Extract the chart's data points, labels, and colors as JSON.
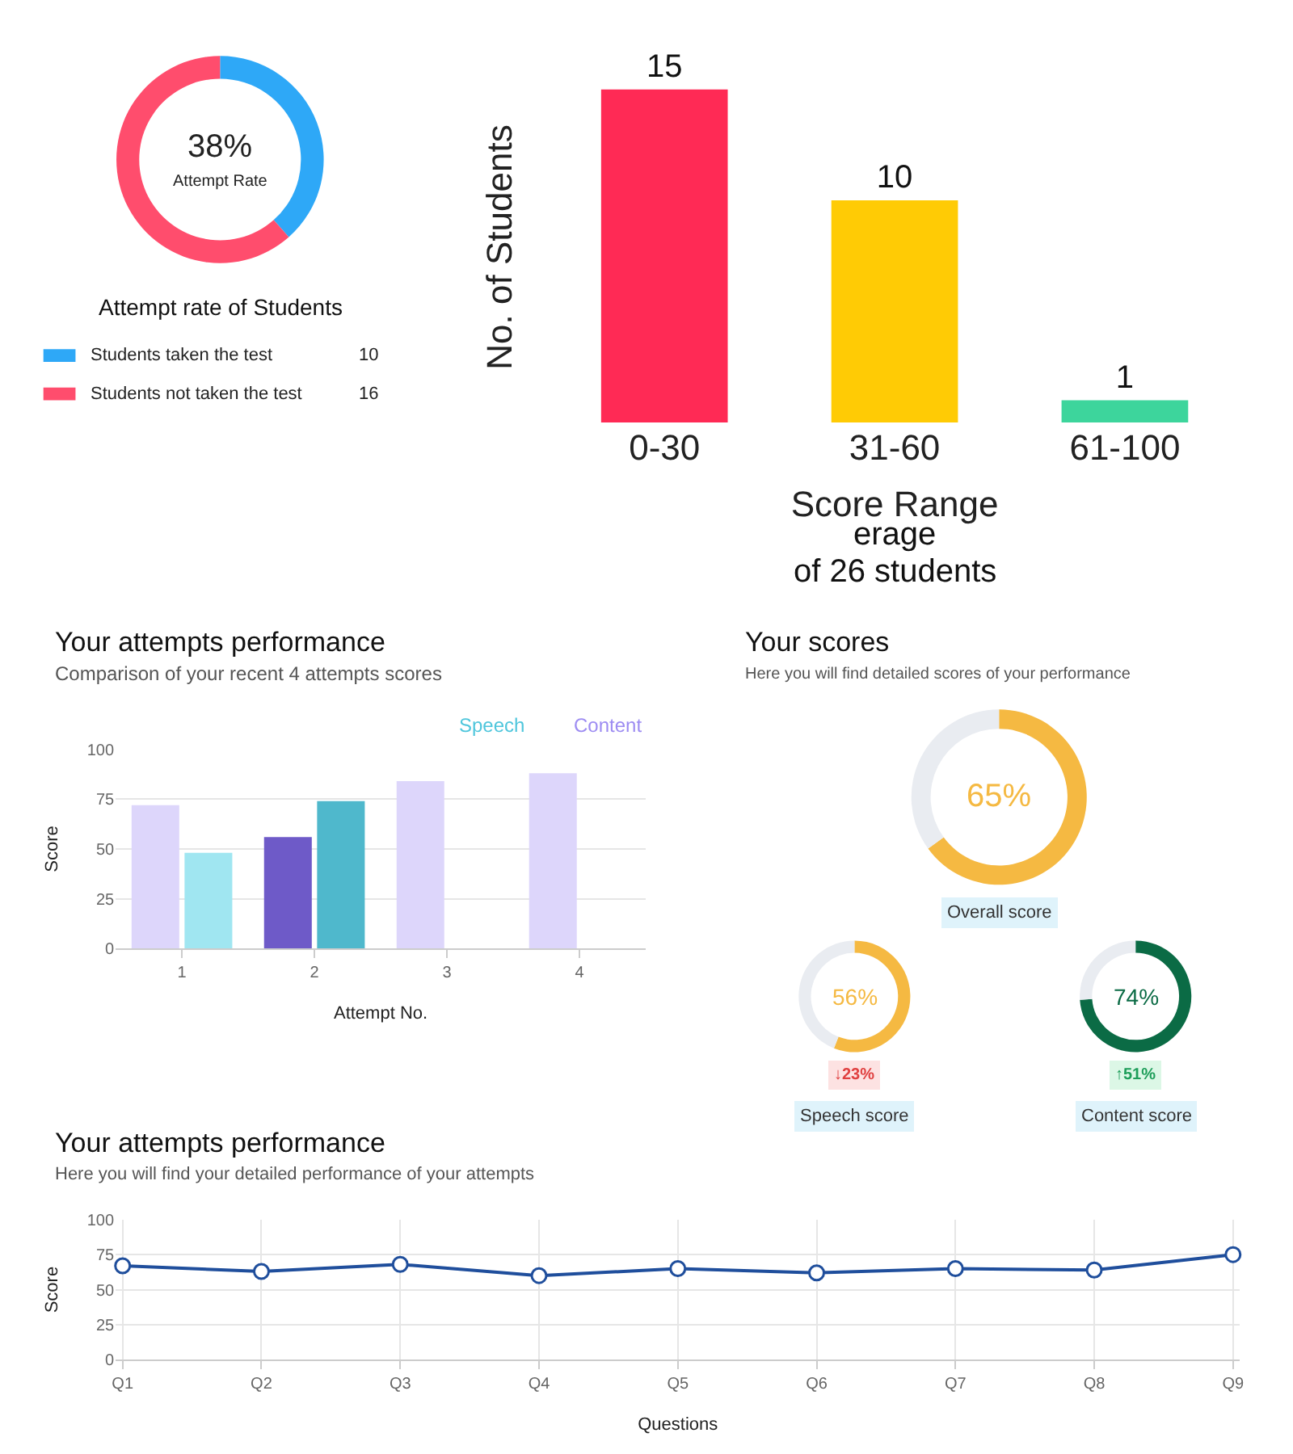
{
  "chart_data": [
    {
      "type": "donut",
      "title": "Attempt rate of Students",
      "categories": [
        "Students taken the test",
        "Students not taken the test"
      ],
      "values": [
        10,
        16
      ],
      "value_labels": [
        "10",
        "16"
      ],
      "colors": [
        "#2ea8f7",
        "#ff4d6d"
      ],
      "annotations": [
        "38%",
        "Attempt Rate"
      ],
      "legend": "bottom"
    },
    {
      "type": "bar",
      "categories": [
        "0-30",
        "31-60",
        "61-100"
      ],
      "values": [
        15,
        10,
        1
      ],
      "colors": [
        "#ff2a55",
        "#ffcb05",
        "#3dd59c"
      ],
      "data_labels": true,
      "xlabel": "Score Range",
      "ylabel": "No. of Students",
      "tick_labels": "x",
      "annotations": [
        "erage",
        "of 26 students"
      ]
    },
    {
      "type": "bar",
      "title": "Your attempts performance",
      "subtitle": "Comparison of your recent 4 attempts scores",
      "categories": [
        "1",
        "2",
        "3",
        "4"
      ],
      "series": [
        {
          "name": "Content",
          "color": "#9d8cf2",
          "colors": [
            "#ddd6fb",
            "#6e5ac8",
            "#ddd6fb",
            "#ddd6fb"
          ],
          "values": [
            72,
            56,
            84,
            88
          ]
        },
        {
          "name": "Speech",
          "color": "#4fc6dc",
          "colors": [
            "#a0e6f1",
            "#4fb8cc",
            "#a0e6f1",
            "#a0e6f1"
          ],
          "values": [
            48,
            74,
            null,
            null
          ]
        }
      ],
      "xlabel": "Attempt No.",
      "ylabel": "Score",
      "ylim": [
        0,
        100
      ],
      "yticks": [
        0,
        25,
        50,
        75,
        100
      ],
      "grid": "y",
      "legend": "top right"
    },
    {
      "type": "line",
      "title": "Your attempts performance",
      "subtitle": "Here you will find your detailed performance of your attempts",
      "categories": [
        "Q1",
        "Q2",
        "Q3",
        "Q4",
        "Q5",
        "Q6",
        "Q7",
        "Q8",
        "Q9"
      ],
      "series": [
        {
          "color": "#1f4e9c",
          "values": [
            67,
            63,
            68,
            60,
            65,
            62,
            65,
            64,
            75
          ]
        }
      ],
      "xlabel": "Questions",
      "ylabel": "Score",
      "ylim": [
        0,
        100
      ],
      "yticks": [
        0,
        25,
        50,
        75,
        100
      ],
      "grid": true,
      "marker": "circle",
      "line_style": "solid"
    },
    {
      "type": "donut",
      "title": "Your scores",
      "subtitle": "Here you will find detailed scores of your performance",
      "categories": [
        null,
        null
      ],
      "values": [
        65,
        35
      ],
      "colors": [
        "#f5b942",
        "#e9ecf1"
      ],
      "annotations": [
        "65%",
        "Overall score"
      ]
    },
    {
      "type": "donut",
      "categories": [
        null,
        null
      ],
      "values": [
        56,
        44
      ],
      "colors": [
        "#f5b942",
        "#e9ecf1"
      ],
      "annotations": [
        "56%",
        "↓23%",
        "Speech score"
      ]
    },
    {
      "type": "donut",
      "categories": [
        null,
        null
      ],
      "values": [
        74,
        26
      ],
      "colors": [
        "#0b6b45",
        "#e9ecf1"
      ],
      "annotations": [
        "74%",
        "↑51%",
        "Content score"
      ]
    }
  ]
}
